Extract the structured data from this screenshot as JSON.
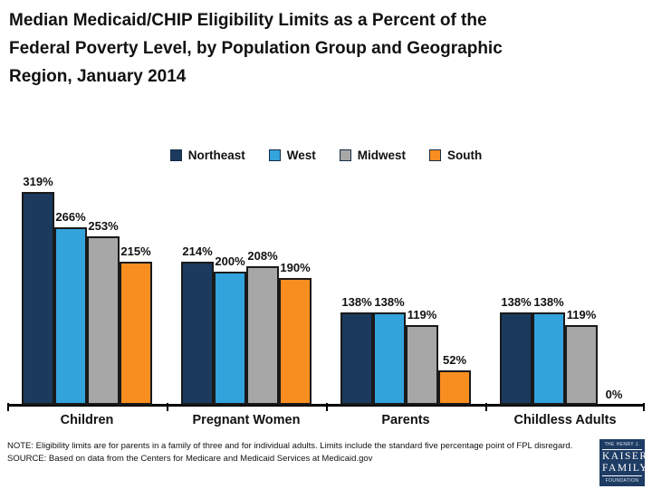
{
  "title": "Median Medicaid/CHIP Eligibility Limits as a Percent of the Federal Poverty Level, by Population Group and Geographic Region, January 2014",
  "chart_data": {
    "type": "bar",
    "categories": [
      "Children",
      "Pregnant Women",
      "Parents",
      "Childless Adults"
    ],
    "series": [
      {
        "name": "Northeast",
        "color": "#1b3a5e",
        "values": [
          319,
          214,
          138,
          138
        ]
      },
      {
        "name": "West",
        "color": "#33a3dc",
        "values": [
          266,
          200,
          138,
          138
        ]
      },
      {
        "name": "Midwest",
        "color": "#a7a7a7",
        "values": [
          253,
          208,
          119,
          119
        ]
      },
      {
        "name": "South",
        "color": "#f98e20",
        "values": [
          215,
          190,
          52,
          0
        ]
      }
    ],
    "value_label_suffix": "%",
    "ylim": [
      0,
      319
    ],
    "legend_position": "top-center",
    "grid": false,
    "y_axis_shown": false
  },
  "footnotes": {
    "note": "NOTE: Eligibility limits are for parents in a family of three and for individual adults. Limits include the standard five percentage point of FPL disregard.",
    "source": "SOURCE: Based on data from the Centers for Medicare and Medicaid Services at Medicaid.gov"
  },
  "logo": {
    "top": "THE HENRY J.",
    "line1": "KAISER",
    "line2": "FAMILY",
    "bottom": "FOUNDATION",
    "bg_color": "#1e3c64"
  }
}
